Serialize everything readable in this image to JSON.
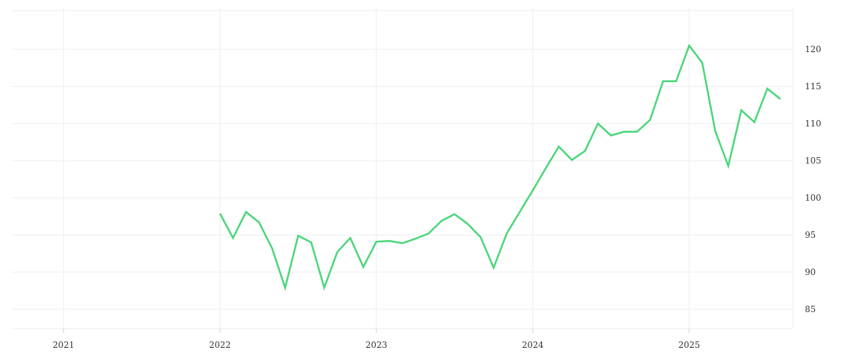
{
  "chart_data": {
    "type": "line",
    "title": "",
    "xlabel": "",
    "ylabel": "",
    "x_ticks": [
      "2021",
      "2022",
      "2023",
      "2024",
      "2025"
    ],
    "y_ticks": [
      85,
      90,
      95,
      100,
      105,
      110,
      115,
      120
    ],
    "xlim": [
      "2020-09",
      "2025-11"
    ],
    "ylim": [
      82,
      124
    ],
    "grid": true,
    "legend": "none",
    "y_axis_side": "right",
    "line_color": "#4cd67a",
    "grid_color": "#eeeeee",
    "x": [
      "2022-01",
      "2022-02",
      "2022-03",
      "2022-04",
      "2022-05",
      "2022-06",
      "2022-07",
      "2022-08",
      "2022-09",
      "2022-10",
      "2022-11",
      "2022-12",
      "2023-01",
      "2023-02",
      "2023-03",
      "2023-04",
      "2023-05",
      "2023-06",
      "2023-07",
      "2023-08",
      "2023-09",
      "2023-10",
      "2023-11",
      "2023-12",
      "2024-01",
      "2024-02",
      "2024-03",
      "2024-04",
      "2024-05",
      "2024-06",
      "2024-07",
      "2024-08",
      "2024-09",
      "2024-10",
      "2024-11",
      "2024-12",
      "2025-01",
      "2025-02",
      "2025-03",
      "2025-04",
      "2025-05",
      "2025-06",
      "2025-07",
      "2025-08"
    ],
    "values": [
      97.9,
      94.6,
      98.1,
      96.7,
      93.2,
      87.9,
      94.9,
      94.0,
      87.9,
      92.7,
      94.6,
      90.7,
      94.1,
      94.2,
      93.9,
      94.5,
      95.2,
      96.9,
      97.8,
      96.5,
      94.7,
      90.6,
      95.2,
      98.1,
      101.0,
      104.0,
      106.9,
      105.1,
      106.3,
      110.0,
      108.4,
      108.9,
      108.9,
      110.5,
      115.7,
      115.7,
      120.5,
      118.2,
      109.0,
      104.3,
      111.8,
      110.2,
      114.7,
      113.3
    ]
  }
}
